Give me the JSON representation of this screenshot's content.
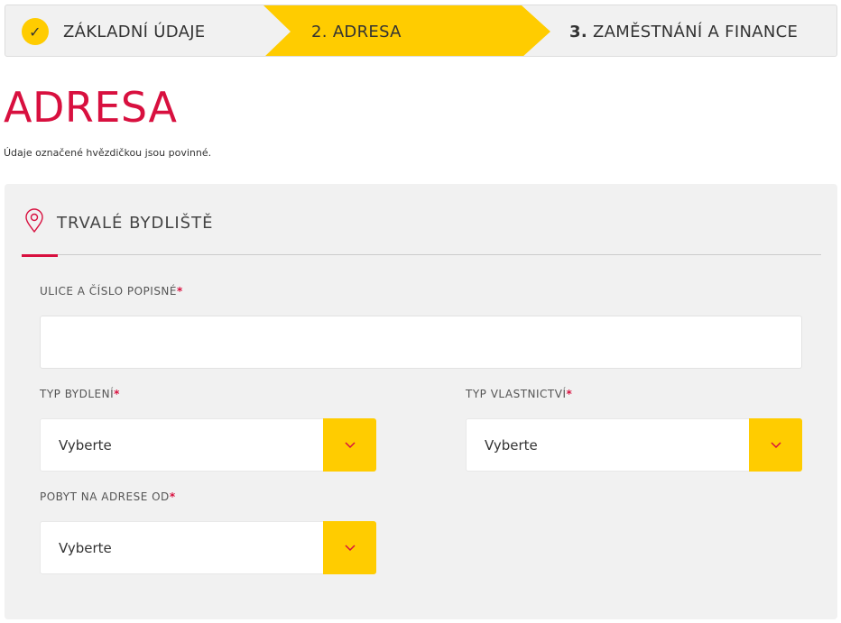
{
  "stepper": {
    "steps": [
      {
        "num": "",
        "label": "ZÁKLADNÍ ÚDAJE",
        "state": "done"
      },
      {
        "num": "2.",
        "label": "ADRESA",
        "state": "active"
      },
      {
        "num": "3.",
        "label": "ZAMĚSTNÁNÍ A FINANCE",
        "state": "pending"
      }
    ],
    "check": "✓"
  },
  "page": {
    "title": "ADRESA",
    "note": "Údaje označené hvězdičkou jsou povinné."
  },
  "section": {
    "title": "TRVALÉ BYDLIŠTĚ",
    "icon": "location-pin-icon"
  },
  "fields": {
    "street": {
      "label": "ULICE A ČÍSLO POPISNÉ",
      "value": ""
    },
    "housing": {
      "label": "TYP BYDLENÍ",
      "value": "Vyberte"
    },
    "ownership": {
      "label": "TYP VLASTNICTVÍ",
      "value": "Vyberte"
    },
    "since": {
      "label": "POBYT NA ADRESE OD",
      "value": "Vyberte"
    },
    "required": "*"
  },
  "colors": {
    "accent": "#d8103f",
    "yellow": "#ffcc00",
    "panel": "#f1f1f1"
  }
}
